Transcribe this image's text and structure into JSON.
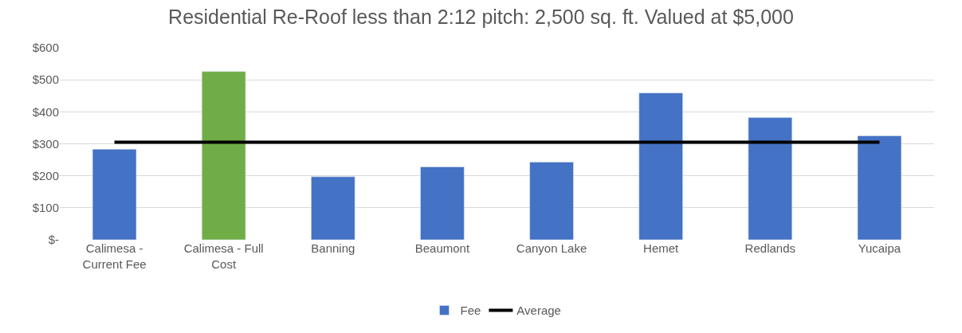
{
  "chart_data": {
    "type": "bar",
    "title": "Residential Re-Roof less than 2:12 pitch: 2,500 sq. ft. Valued at $5,000",
    "categories": [
      "Calimesa - Current Fee",
      "Calimesa - Full Cost",
      "Banning",
      "Beaumont",
      "Canyon Lake",
      "Hemet",
      "Redlands",
      "Yucaipa"
    ],
    "series": [
      {
        "name": "Fee",
        "color": "#4472c4",
        "colors": [
          "#4472c4",
          "#70ad47",
          "#4472c4",
          "#4472c4",
          "#4472c4",
          "#4472c4",
          "#4472c4",
          "#4472c4"
        ],
        "values": [
          283,
          526,
          197,
          228,
          243,
          459,
          382,
          325
        ]
      },
      {
        "name": "Average",
        "type": "line",
        "color": "#000000",
        "values": [
          305,
          305,
          305,
          305,
          305,
          305,
          305,
          305
        ]
      }
    ],
    "ylim": [
      0,
      600
    ],
    "yticks": [
      {
        "value": 0,
        "label": "$-"
      },
      {
        "value": 100,
        "label": "$100"
      },
      {
        "value": 200,
        "label": "$200"
      },
      {
        "value": 300,
        "label": "$300"
      },
      {
        "value": 400,
        "label": "$400"
      },
      {
        "value": 500,
        "label": "$500"
      },
      {
        "value": 600,
        "label": "$600"
      }
    ],
    "grid": "y",
    "legend": "bottom",
    "marker": "none",
    "line_style": "solid"
  }
}
